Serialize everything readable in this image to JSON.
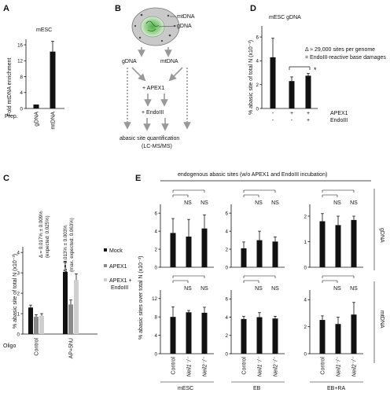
{
  "panels": {
    "A": {
      "letter": "A",
      "title": "mESC",
      "ylabel": "Fold mtDNA enrichment",
      "xprefix": "Prep.",
      "ytick_labels": [
        "0",
        "4",
        "8",
        "12",
        "16"
      ],
      "chart_data": {
        "type": "bar",
        "categories": [
          "gDNA",
          "mtDNA"
        ],
        "values": [
          1,
          14.3
        ],
        "errors": [
          0,
          2.6
        ],
        "ylim": [
          0,
          17
        ],
        "yticks": [
          0,
          4,
          8,
          12,
          16
        ]
      }
    },
    "B": {
      "letter": "B",
      "mtdna": "mtDNA",
      "gdna": "gDNA",
      "left": "gDNA",
      "right": "mtDNA",
      "apex": "+ APEX1",
      "endo": "+ EndoIII",
      "q1": "abasic site quantification",
      "q2": "(LC-MS/MS)"
    },
    "C": {
      "letter": "C",
      "ylabel": "% abasic site of total N (x10⁻³)",
      "xprefix": "Oligo",
      "ytick_labels": [
        "0",
        "1",
        "2",
        "3",
        "4"
      ],
      "ann1a": "Δ = 0.017% ± 0.009%",
      "ann1b": "(expected: 0.025%)",
      "ann2a": "Δ = 0.013% ± 0.003%",
      "ann2b": "(max. expected: 0.063%)",
      "legend": [
        "Mock",
        "APEX1",
        "APEX1 +",
        "EndoIII"
      ],
      "chart_data": {
        "type": "bar",
        "categories": [
          "Control",
          "AP+5hU"
        ],
        "series": [
          {
            "name": "Mock",
            "values": [
              1.3,
              3.05
            ],
            "errors": [
              0.12,
              0.5
            ],
            "color": "#111111"
          },
          {
            "name": "APEX1",
            "values": [
              0.85,
              1.45
            ],
            "errors": [
              0.1,
              0.22
            ],
            "color": "#8a8a8a"
          },
          {
            "name": "APEX1 + EndoIII",
            "values": [
              0.9,
              2.65
            ],
            "errors": [
              0.1,
              0.3
            ],
            "color": "#cfcfcf"
          }
        ],
        "ylim": [
          0,
          4.2
        ],
        "yticks": [
          0,
          1,
          2,
          3,
          4
        ]
      }
    },
    "D": {
      "letter": "D",
      "title": "mESC gDNA",
      "ylabel": "% abasic site of total N (x10⁻³)",
      "ytick_labels": [
        "0",
        "2",
        "4",
        "6"
      ],
      "ann1": "Δ ≈ 29,000 sites per genome",
      "ann2": "= EndoIII-reactive base damages",
      "star": "*",
      "row_labels": [
        "APEX1",
        "EndoIII"
      ],
      "signs": [
        [
          "-",
          "+",
          "+"
        ],
        [
          "-",
          "-",
          "+"
        ]
      ],
      "chart_data": {
        "type": "bar",
        "categories": [
          "-/-",
          "+/-",
          "+/+"
        ],
        "values": [
          4.3,
          2.3,
          2.75
        ],
        "errors": [
          1.6,
          0.35,
          0.2
        ],
        "ylim": [
          0,
          6.8
        ],
        "yticks": [
          0,
          2,
          4,
          6
        ]
      }
    },
    "E": {
      "letter": "E",
      "header": "endogenous abasic sites (w/o APEX1 and EndoIII incubation)",
      "ylabel": "% abasic sites over total N (x10⁻³)",
      "ns": "NS",
      "row_labels": [
        "gDNA",
        "mtDNA"
      ],
      "col_labels": [
        "mESC",
        "EB",
        "EB+RA"
      ],
      "categories": [
        "Control",
        "Neil1⁻/⁻",
        "Neil2⁻/⁻"
      ],
      "ytick_labels": {
        "gDNA_mESC": [
          "0",
          "2",
          "4",
          "6"
        ],
        "gDNA_EB": [
          "0",
          "2",
          "4",
          "6"
        ],
        "gDNA_EBRA": [
          "0",
          "1",
          "2"
        ],
        "mtDNA_mESC": [
          "0",
          "4",
          "8",
          "12"
        ],
        "mtDNA_EB": [
          "0",
          "2",
          "4",
          "6"
        ],
        "mtDNA_EBRA": [
          "0",
          "2",
          "4"
        ]
      },
      "chart_data": [
        {
          "type": "bar",
          "name": "gDNA mESC",
          "categories": [
            "Control",
            "Neil1-/-",
            "Neil2-/-"
          ],
          "values": [
            3.8,
            3.4,
            4.3
          ],
          "errors": [
            1.6,
            1.9,
            1.5
          ],
          "ylim": [
            0,
            6.8
          ],
          "yticks": [
            0,
            2,
            4,
            6
          ]
        },
        {
          "type": "bar",
          "name": "gDNA EB",
          "categories": [
            "Control",
            "Neil1-/-",
            "Neil2-/-"
          ],
          "values": [
            2.1,
            3.0,
            2.85
          ],
          "errors": [
            0.7,
            1.0,
            0.5
          ],
          "ylim": [
            0,
            6.8
          ],
          "yticks": [
            0,
            2,
            4,
            6
          ]
        },
        {
          "type": "bar",
          "name": "gDNA EB+RA",
          "categories": [
            "Control",
            "Neil1-/-",
            "Neil2-/-"
          ],
          "values": [
            1.8,
            1.65,
            1.85
          ],
          "errors": [
            0.3,
            0.35,
            0.15
          ],
          "ylim": [
            0,
            2.4
          ],
          "yticks": [
            0,
            1,
            2
          ]
        },
        {
          "type": "bar",
          "name": "mtDNA mESC",
          "categories": [
            "Control",
            "Neil1-/-",
            "Neil2-/-"
          ],
          "values": [
            8.0,
            9.0,
            8.9
          ],
          "errors": [
            2.2,
            0.4,
            1.2
          ],
          "ylim": [
            0,
            13.5
          ],
          "yticks": [
            0,
            4,
            8,
            12
          ]
        },
        {
          "type": "bar",
          "name": "mtDNA EB",
          "categories": [
            "Control",
            "Neil1-/-",
            "Neil2-/-"
          ],
          "values": [
            3.8,
            4.0,
            3.85
          ],
          "errors": [
            0.3,
            0.5,
            0.25
          ],
          "ylim": [
            0,
            6.8
          ],
          "yticks": [
            0,
            2,
            4,
            6
          ]
        },
        {
          "type": "bar",
          "name": "mtDNA EB+RA",
          "categories": [
            "Control",
            "Neil1-/-",
            "Neil2-/-"
          ],
          "values": [
            2.5,
            2.2,
            2.9
          ],
          "errors": [
            0.3,
            0.5,
            0.9
          ],
          "ylim": [
            0,
            4.6
          ],
          "yticks": [
            0,
            2,
            4
          ]
        }
      ]
    }
  }
}
